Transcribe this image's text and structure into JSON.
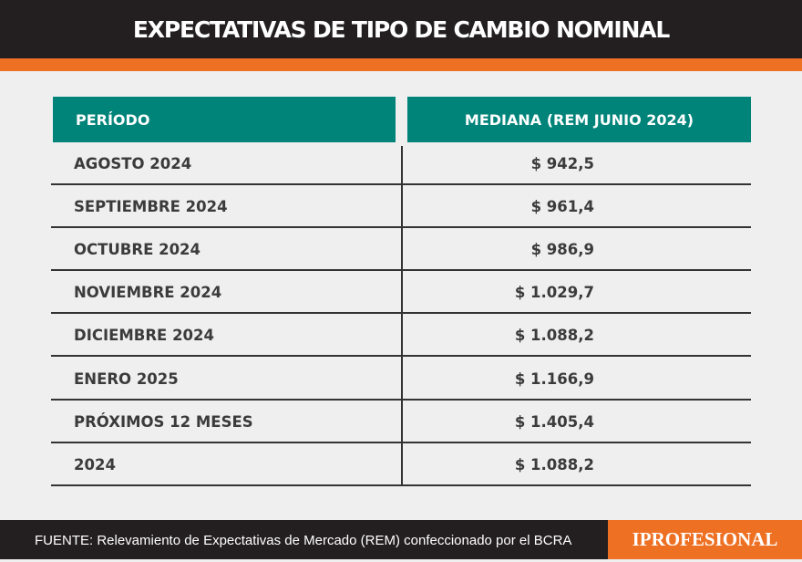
{
  "title": "EXPECTATIVAS DE TIPO DE CAMBIO NOMINAL",
  "table": {
    "headers": [
      "PERÍODO",
      "MEDIANA (REM JUNIO 2024)"
    ],
    "rows": [
      {
        "period": "AGOSTO 2024",
        "value": "$ 942,5"
      },
      {
        "period": "SEPTIEMBRE 2024",
        "value": "$ 961,4"
      },
      {
        "period": "OCTUBRE 2024",
        "value": "$ 986,9"
      },
      {
        "period": "NOVIEMBRE 2024",
        "value": "$ 1.029,7"
      },
      {
        "period": "DICIEMBRE 2024",
        "value": "$ 1.088,2"
      },
      {
        "period": "ENERO 2025",
        "value": "$ 1.166,9"
      },
      {
        "period": "PRÓXIMOS 12 MESES",
        "value": "$ 1.405,4"
      },
      {
        "period": "2024",
        "value": "$ 1.088,2"
      }
    ]
  },
  "footer": {
    "source": "FUENTE: Relevamiento de Expectativas de Mercado (REM) confeccionado por el BCRA",
    "logo": "IPROFESIONAL"
  },
  "colors": {
    "dark": "#231f20",
    "accent": "#ee7023",
    "header": "#00847a"
  }
}
